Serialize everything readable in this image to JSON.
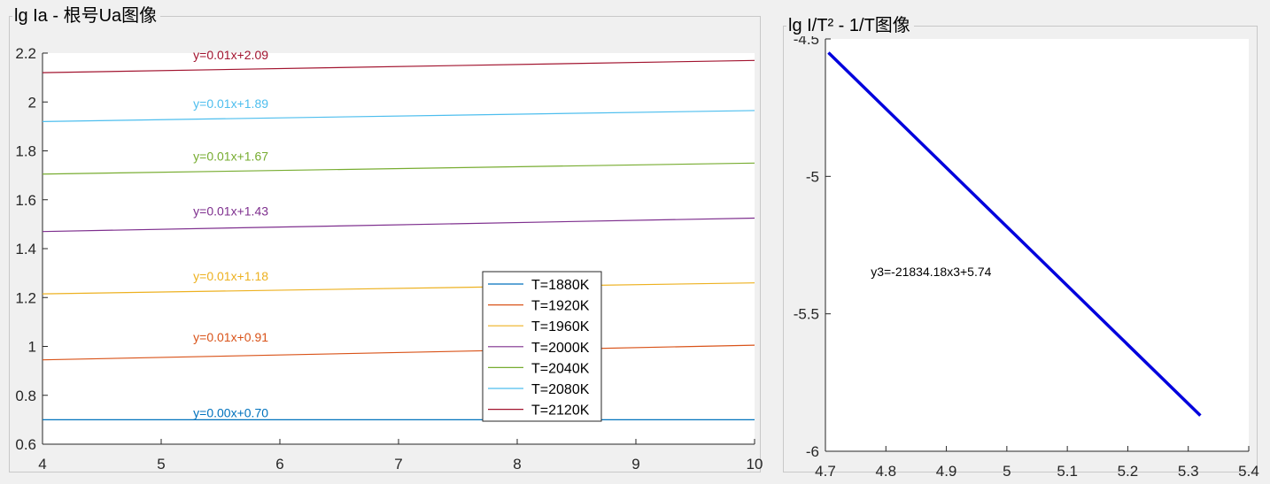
{
  "panels": {
    "left_title": "lg Ia - 根号Ua图像",
    "right_title": "lg I/T² - 1/T图像"
  },
  "chart_data": [
    {
      "type": "line",
      "title": "lg Ia - 根号Ua图像",
      "xlim": [
        4,
        10
      ],
      "ylim": [
        0.6,
        2.2
      ],
      "xticks": [
        4,
        5,
        6,
        7,
        8,
        9,
        10
      ],
      "yticks": [
        0.6,
        0.8,
        1,
        1.2,
        1.4,
        1.6,
        1.8,
        2,
        2.2
      ],
      "xtick_labels": [
        "4",
        "5",
        "6",
        "7",
        "8",
        "9",
        "10"
      ],
      "ytick_labels": [
        "0.6",
        "0.8",
        "1",
        "1.2",
        "1.4",
        "1.6",
        "1.8",
        "2",
        "2.2"
      ],
      "grid": false,
      "legend_position": "bottom-center",
      "series": [
        {
          "name": "T=1880K",
          "color": "#0072BD",
          "x": [
            4,
            10
          ],
          "y": [
            0.7,
            0.7
          ],
          "equation": "y=0.00x+0.70",
          "label_x": 5.27,
          "label_y": 0.725
        },
        {
          "name": "T=1920K",
          "color": "#D95319",
          "x": [
            4,
            10
          ],
          "y": [
            0.945,
            1.005
          ],
          "equation": "y=0.01x+0.91",
          "label_x": 5.27,
          "label_y": 1.035
        },
        {
          "name": "T=1960K",
          "color": "#EDB120",
          "x": [
            4,
            10
          ],
          "y": [
            1.215,
            1.26
          ],
          "equation": "y=0.01x+1.18",
          "label_x": 5.27,
          "label_y": 1.285
        },
        {
          "name": "T=2000K",
          "color": "#7E2F8E",
          "x": [
            4,
            10
          ],
          "y": [
            1.47,
            1.525
          ],
          "equation": "y=0.01x+1.43",
          "label_x": 5.27,
          "label_y": 1.55
        },
        {
          "name": "T=2040K",
          "color": "#77AC30",
          "x": [
            4,
            10
          ],
          "y": [
            1.705,
            1.75
          ],
          "equation": "y=0.01x+1.67",
          "label_x": 5.27,
          "label_y": 1.775
        },
        {
          "name": "T=2080K",
          "color": "#4DBEEE",
          "x": [
            4,
            10
          ],
          "y": [
            1.92,
            1.965
          ],
          "equation": "y=0.01x+1.89",
          "label_x": 5.27,
          "label_y": 1.99
        },
        {
          "name": "T=2120K",
          "color": "#A2142F",
          "x": [
            4,
            10
          ],
          "y": [
            2.12,
            2.17
          ],
          "equation": "y=0.01x+2.09",
          "label_x": 5.27,
          "label_y": 2.19
        }
      ]
    },
    {
      "type": "line",
      "title": "lg I/T² - 1/T图像",
      "xlim": [
        4.7,
        5.4
      ],
      "ylim": [
        -6,
        -4.5
      ],
      "xticks": [
        4.7,
        4.8,
        4.9,
        5,
        5.1,
        5.2,
        5.3,
        5.4
      ],
      "yticks": [
        -6,
        -5.5,
        -5,
        -4.5
      ],
      "xtick_labels": [
        "4.7",
        "4.8",
        "4.9",
        "5",
        "5.1",
        "5.2",
        "5.3",
        "5.4"
      ],
      "ytick_labels": [
        "-6",
        "-5.5",
        "-5",
        "-4.5"
      ],
      "grid": false,
      "series": [
        {
          "color": "#0000DD",
          "x": [
            4.705,
            5.32
          ],
          "y": [
            -4.55,
            -5.87
          ],
          "equation": "y3=-21834.18x3+5.74",
          "label_x": 4.775,
          "label_y": -5.35
        }
      ]
    }
  ]
}
